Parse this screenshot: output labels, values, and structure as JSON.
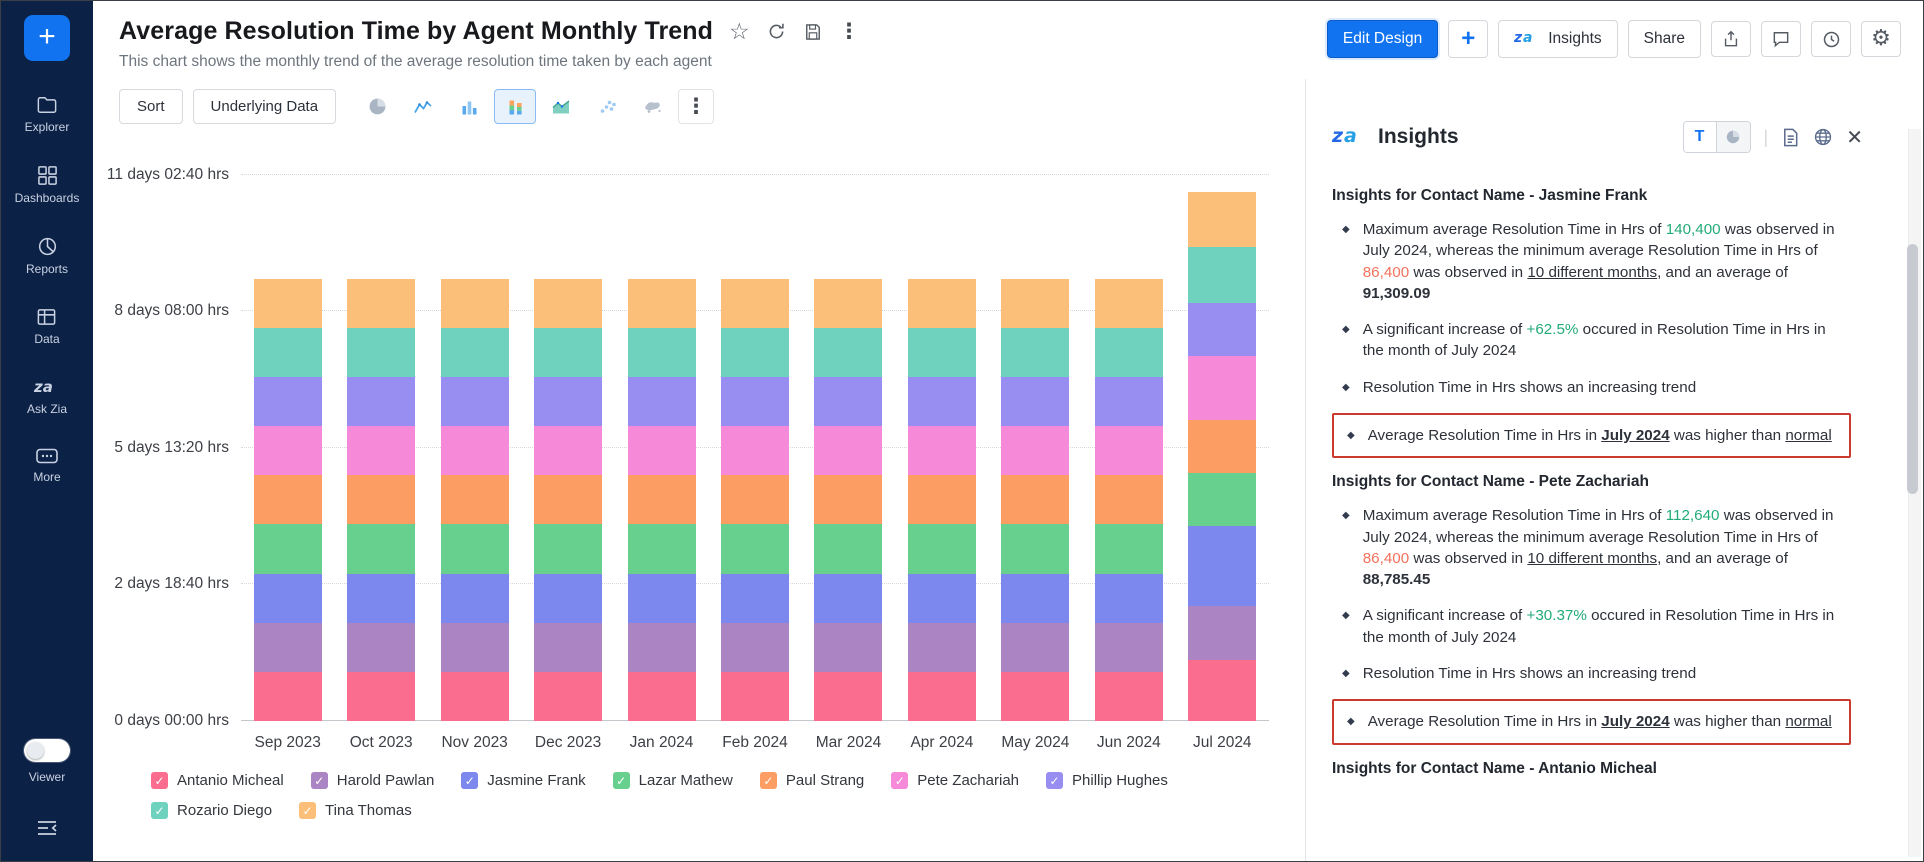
{
  "colors": {
    "accent_blue": "#1173f0",
    "sidebar_bg": "#0c2146",
    "highlight_box_red": "#cb3a2f",
    "positive_green": "#22ab77",
    "negative_orange": "#f4715c"
  },
  "sidebar": {
    "items": [
      {
        "label": "Explorer",
        "icon": "folder-icon"
      },
      {
        "label": "Dashboards",
        "icon": "grid-icon"
      },
      {
        "label": "Reports",
        "icon": "pie-report-icon"
      },
      {
        "label": "Data",
        "icon": "table-icon"
      },
      {
        "label": "Ask Zia",
        "icon": "zia-icon"
      },
      {
        "label": "More",
        "icon": "more-dots-icon"
      }
    ],
    "viewer_label": "Viewer"
  },
  "header": {
    "title": "Average Resolution Time by Agent Monthly Trend",
    "subtitle": "This chart shows the monthly trend of the average resolution time taken by each agent",
    "actions": {
      "edit_design": "Edit Design",
      "add": "+",
      "insights": "Insights",
      "share": "Share"
    },
    "title_icons": [
      "star-icon",
      "refresh-icon",
      "save-icon",
      "kebab-menu-icon"
    ],
    "action_icons": [
      "export-icon",
      "comment-icon",
      "history-icon",
      "settings-gear-icon"
    ]
  },
  "toolbar": {
    "sort_label": "Sort",
    "underlying_data_label": "Underlying Data",
    "chart_type_icons": [
      "pie-chart-icon",
      "line-chart-icon",
      "bar-chart-icon",
      "stacked-bar-chart-icon",
      "stacked-area-chart-icon",
      "scatter-chart-icon",
      "map-chart-icon"
    ],
    "selected_chart_type": "stacked-bar-chart-icon"
  },
  "chart_data": {
    "type": "bar",
    "stacked": true,
    "title": "Average Resolution Time by Agent Monthly Trend",
    "xlabel": "",
    "ylabel": "",
    "values_unit": "hours",
    "legend_position": "bottom",
    "grid": true,
    "categories": [
      "Sep 2023",
      "Oct 2023",
      "Nov 2023",
      "Dec 2023",
      "Jan 2024",
      "Feb 2024",
      "Mar 2024",
      "Apr 2024",
      "May 2024",
      "Jun 2024",
      "Jul 2024"
    ],
    "y_ticks": [
      "0 days 00:00 hrs",
      "2 days 18:40 hrs",
      "5 days 13:20 hrs",
      "8 days 08:00 hrs",
      "11 days 02:40 hrs"
    ],
    "y_tick_hours": [
      0,
      66.667,
      133.333,
      200,
      266.667
    ],
    "ylim_hours": [
      0,
      270
    ],
    "series": [
      {
        "name": "Antanio Micheal",
        "color": "#fb6d8e",
        "values": [
          24,
          24,
          24,
          24,
          24,
          24,
          24,
          24,
          24,
          24,
          30
        ]
      },
      {
        "name": "Harold Pawlan",
        "color": "#ab84c3",
        "values": [
          24,
          24,
          24,
          24,
          24,
          24,
          24,
          24,
          24,
          24,
          26
        ]
      },
      {
        "name": "Jasmine Frank",
        "color": "#7d88ee",
        "values": [
          24,
          24,
          24,
          24,
          24,
          24,
          24,
          24,
          24,
          24,
          39
        ]
      },
      {
        "name": "Lazar Mathew",
        "color": "#67d08e",
        "values": [
          24,
          24,
          24,
          24,
          24,
          24,
          24,
          24,
          24,
          24,
          26
        ]
      },
      {
        "name": "Paul Strang",
        "color": "#fc9d63",
        "values": [
          24,
          24,
          24,
          24,
          24,
          24,
          24,
          24,
          24,
          24,
          26
        ]
      },
      {
        "name": "Pete Zachariah",
        "color": "#f78ad8",
        "values": [
          24,
          24,
          24,
          24,
          24,
          24,
          24,
          24,
          24,
          24,
          31.3
        ]
      },
      {
        "name": "Phillip Hughes",
        "color": "#988ef2",
        "values": [
          24,
          24,
          24,
          24,
          24,
          24,
          24,
          24,
          24,
          24,
          26
        ]
      },
      {
        "name": "Rozario Diego",
        "color": "#6ed2bf",
        "values": [
          24,
          24,
          24,
          24,
          24,
          24,
          24,
          24,
          24,
          24,
          27
        ]
      },
      {
        "name": "Tina Thomas",
        "color": "#fbbf79",
        "values": [
          24,
          24,
          24,
          24,
          24,
          24,
          24,
          24,
          24,
          24,
          27
        ]
      }
    ]
  },
  "insights_panel": {
    "title": "Insights",
    "text_toggle_label": "T",
    "header_icons": [
      "text-view-toggle",
      "chart-view-toggle",
      "document-icon",
      "globe-icon",
      "close-icon"
    ],
    "sections": [
      {
        "heading": "Insights for Contact Name - Jasmine Frank",
        "bullets": [
          {
            "boxed": false,
            "parts": [
              {
                "t": "Maximum average Resolution Time in Hrs of "
              },
              {
                "t": "140,400",
                "s": "green"
              },
              {
                "t": " was observed in July 2024, whereas the minimum average Resolution Time in Hrs of "
              },
              {
                "t": "86,400",
                "s": "red"
              },
              {
                "t": " was observed in "
              },
              {
                "t": "10 different months",
                "s": "u"
              },
              {
                "t": ", and an average of "
              },
              {
                "t": "91,309.09",
                "s": "b"
              }
            ]
          },
          {
            "boxed": false,
            "parts": [
              {
                "t": "A significant increase of "
              },
              {
                "t": "+62.5%",
                "s": "green"
              },
              {
                "t": " occured in Resolution Time in Hrs in the month of July 2024"
              }
            ]
          },
          {
            "boxed": false,
            "parts": [
              {
                "t": "Resolution Time in Hrs shows an increasing trend"
              }
            ]
          },
          {
            "boxed": true,
            "parts": [
              {
                "t": "Average Resolution Time in Hrs in "
              },
              {
                "t": "July 2024",
                "s": "bu"
              },
              {
                "t": " was higher than "
              },
              {
                "t": "normal",
                "s": "u"
              }
            ]
          }
        ]
      },
      {
        "heading": "Insights for Contact Name - Pete Zachariah",
        "bullets": [
          {
            "boxed": false,
            "parts": [
              {
                "t": "Maximum average Resolution Time in Hrs of "
              },
              {
                "t": "112,640",
                "s": "green"
              },
              {
                "t": " was observed in July 2024, whereas the minimum average Resolution Time in Hrs of "
              },
              {
                "t": "86,400",
                "s": "red"
              },
              {
                "t": " was observed in "
              },
              {
                "t": "10 different months",
                "s": "u"
              },
              {
                "t": ", and an average of "
              },
              {
                "t": "88,785.45",
                "s": "b"
              }
            ]
          },
          {
            "boxed": false,
            "parts": [
              {
                "t": "A significant increase of "
              },
              {
                "t": "+30.37%",
                "s": "green"
              },
              {
                "t": " occured in Resolution Time in Hrs in the month of July 2024"
              }
            ]
          },
          {
            "boxed": false,
            "parts": [
              {
                "t": "Resolution Time in Hrs shows an increasing trend"
              }
            ]
          },
          {
            "boxed": true,
            "parts": [
              {
                "t": "Average Resolution Time in Hrs in "
              },
              {
                "t": "July 2024",
                "s": "bu"
              },
              {
                "t": " was higher than "
              },
              {
                "t": "normal",
                "s": "u"
              }
            ]
          }
        ]
      },
      {
        "heading": "Insights for Contact Name - Antanio Micheal",
        "bullets": []
      }
    ]
  }
}
